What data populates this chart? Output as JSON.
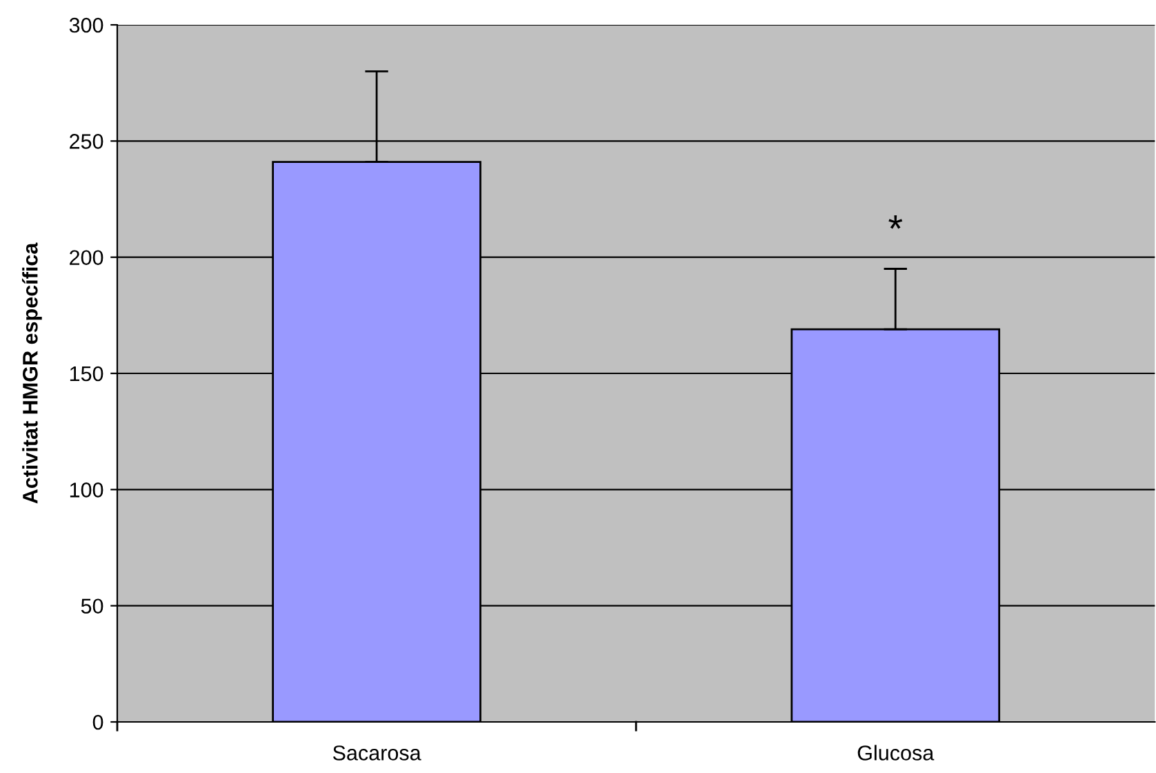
{
  "chart_data": {
    "type": "bar",
    "ylabel": "Activitat HMGR específica",
    "categories": [
      "Sacarosa",
      "Glucosa"
    ],
    "series": [
      {
        "color": "#9999ff",
        "values": [
          241,
          169
        ],
        "errors": [
          39,
          26
        ]
      }
    ],
    "ylim": [
      0,
      300
    ],
    "yticks": [
      0,
      50,
      100,
      150,
      200,
      250,
      300
    ],
    "grid": "y",
    "annotations": [
      "*"
    ]
  }
}
